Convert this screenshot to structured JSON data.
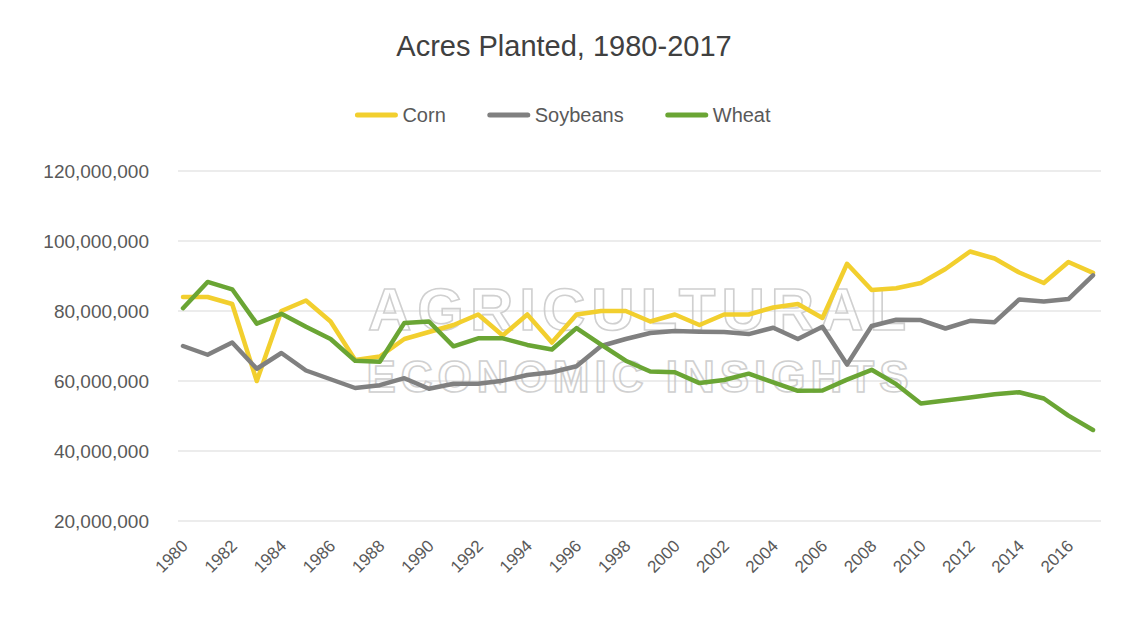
{
  "chart_data": {
    "type": "line",
    "title": "Acres Planted, 1980-2017",
    "annotations": [
      "AGRICULTURAL",
      "ECONOMIC INSIGHTS"
    ],
    "categories": [
      "1980",
      null,
      "1982",
      null,
      "1984",
      null,
      "1986",
      null,
      "1988",
      null,
      "1990",
      null,
      "1992",
      null,
      "1994",
      null,
      "1996",
      null,
      "1998",
      null,
      "2000",
      null,
      "2002",
      null,
      "2004",
      null,
      "2006",
      null,
      "2008",
      null,
      "2010",
      null,
      "2012",
      null,
      "2014",
      null,
      "2016",
      null
    ],
    "series": [
      {
        "name": "Corn",
        "color": "#f2cf2e",
        "values": [
          84000000,
          84000000,
          82000000,
          60000000,
          80000000,
          83000000,
          77000000,
          66000000,
          67000000,
          72000000,
          74000000,
          76000000,
          79000000,
          73000000,
          79000000,
          71000000,
          79000000,
          80000000,
          80000000,
          77000000,
          79000000,
          76000000,
          79000000,
          79000000,
          81000000,
          82000000,
          78000000,
          93500000,
          86000000,
          86500000,
          88000000,
          92000000,
          97000000,
          95000000,
          91000000,
          88000000,
          94000000,
          90900000
        ]
      },
      {
        "name": "Soybeans",
        "color": "#808080",
        "values": [
          70000000,
          67500000,
          71000000,
          63500000,
          68000000,
          63000000,
          60500000,
          58000000,
          58800000,
          60800000,
          57800000,
          59200000,
          59200000,
          60100000,
          61700000,
          62500000,
          64200000,
          70000000,
          72000000,
          73700000,
          74300000,
          74100000,
          74000000,
          73400000,
          75200000,
          72000000,
          75500000,
          64700000,
          75700000,
          77500000,
          77400000,
          75000000,
          77200000,
          76800000,
          83300000,
          82700000,
          83400000,
          90200000
        ]
      },
      {
        "name": "Wheat",
        "color": "#6aa534",
        "values": [
          80800000,
          88300000,
          86200000,
          76400000,
          79200000,
          75500000,
          72000000,
          65800000,
          65500000,
          76600000,
          77000000,
          69900000,
          72200000,
          72200000,
          70300000,
          69000000,
          75100000,
          70400000,
          65800000,
          62700000,
          62500000,
          59400000,
          60300000,
          62100000,
          59600000,
          57200000,
          57300000,
          60400000,
          63200000,
          59100000,
          53600000,
          54400000,
          55300000,
          56200000,
          56800000,
          55000000,
          50100000,
          46000000
        ]
      }
    ],
    "ylim": [
      20000000,
      120000000
    ],
    "yticks": [
      {
        "value": 20000000,
        "label": "20,000,000"
      },
      {
        "value": 40000000,
        "label": "40,000,000"
      },
      {
        "value": 60000000,
        "label": "60,000,000"
      },
      {
        "value": 80000000,
        "label": "80,000,000"
      },
      {
        "value": 100000000,
        "label": "100,000,000"
      },
      {
        "value": 120000000,
        "label": "120,000,000"
      }
    ],
    "grid": true,
    "legend": "top"
  }
}
